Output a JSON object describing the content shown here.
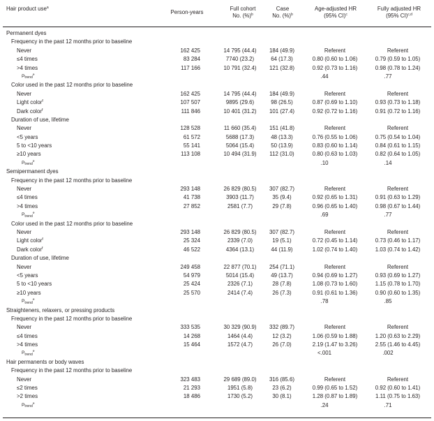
{
  "header": {
    "col_product": "Hair product use",
    "col_product_sup": "a",
    "col_py": "Person-years",
    "col_full_1": "Full cohort",
    "col_full_2": "No. (%)",
    "col_full_sup": "b",
    "col_case_1": "Case",
    "col_case_2": "No. (%)",
    "col_case_sup": "b",
    "col_age_1": "Age-adjusted HR",
    "col_age_2": "(95% CI)",
    "col_age_sup": "c",
    "col_fully_1": "Fully adjusted HR",
    "col_fully_2": "(95% CI)",
    "col_fully_sup": "c,d"
  },
  "ptrend": {
    "p": "P",
    "sub": "trend",
    "sup": "e"
  },
  "rows": [
    {
      "t": "section",
      "label": "Permanent dyes"
    },
    {
      "t": "subsection",
      "label": "Frequency in the past 12 months prior to baseline"
    },
    {
      "t": "item",
      "label": "Never",
      "py": "162 425",
      "full": "14 795 (44.4)",
      "case": "184 (49.9)",
      "age": "Referent",
      "fully": "Referent"
    },
    {
      "t": "item",
      "label": "≤4 times",
      "py": "83 284",
      "full": "7740 (23.2)",
      "case": "64 (17.3)",
      "age": "0.80 (0.60 to 1.06)",
      "fully": "0.79 (0.59 to 1.05)"
    },
    {
      "t": "item",
      "label": ">4 times",
      "py": "117 166",
      "full": "10 791 (32.4)",
      "case": "121 (32.8)",
      "age": "0.92 (0.73 to 1.16)",
      "fully": "0.98 (0.78 to 1.24)"
    },
    {
      "t": "ptrend",
      "age": ".44",
      "fully": ".77"
    },
    {
      "t": "subsection",
      "label": "Color used in the past 12 months prior to baseline"
    },
    {
      "t": "item",
      "label": "Never",
      "py": "162 425",
      "full": "14 795 (44.4)",
      "case": "184 (49.9)",
      "age": "Referent",
      "fully": "Referent"
    },
    {
      "t": "item",
      "label": "Light color",
      "sup": "f",
      "py": "107 507",
      "full": "9895 (29.6)",
      "case": "98 (26.5)",
      "age": "0.87 (0.69 to 1.10)",
      "fully": "0.93 (0.73 to 1.18)"
    },
    {
      "t": "item",
      "label": "Dark color",
      "sup": "f",
      "py": "111 846",
      "full": "10 401 (31.2)",
      "case": "101 (27.4)",
      "age": "0.92 (0.72 to 1.16)",
      "fully": "0.91 (0.72 to 1.16)"
    },
    {
      "t": "subsection",
      "label": "Duration of use, lifetime"
    },
    {
      "t": "item",
      "label": "Never",
      "py": "128 528",
      "full": "11 660 (35.4)",
      "case": "151 (41.8)",
      "age": "Referent",
      "fully": "Referent"
    },
    {
      "t": "item",
      "label": "<5 years",
      "py": "61 572",
      "full": "5688 (17.3)",
      "case": "48 (13.3)",
      "age": "0.76 (0.55 to 1.06)",
      "fully": "0.75 (0.54 to 1.04)"
    },
    {
      "t": "item",
      "label": "5 to <10 years",
      "py": "55 141",
      "full": "5064 (15.4)",
      "case": "50 (13.9)",
      "age": "0.83 (0.60 to 1.14)",
      "fully": "0.84 (0.61 to 1.15)"
    },
    {
      "t": "item",
      "label": "≥10 years",
      "py": "113 108",
      "full": "10 494 (31.9)",
      "case": "112 (31.0)",
      "age": "0.80 (0.63 to 1.03)",
      "fully": "0.82 (0.64 to 1.05)"
    },
    {
      "t": "ptrend",
      "age": ".10",
      "fully": ".14"
    },
    {
      "t": "section",
      "label": "Semipermanent dyes"
    },
    {
      "t": "subsection",
      "label": "Frequency in the past 12 months prior to baseline"
    },
    {
      "t": "item",
      "label": "Never",
      "py": "293 148",
      "full": "26 829 (80.5)",
      "case": "307 (82.7)",
      "age": "Referent",
      "fully": "Referent"
    },
    {
      "t": "item",
      "label": "≤4 times",
      "py": "41 738",
      "full": "3903 (11.7)",
      "case": "35 (9.4)",
      "age": "0.92 (0.65 to 1.31)",
      "fully": "0.91 (0.63 to 1.29)"
    },
    {
      "t": "item",
      "label": ">4 times",
      "py": "27 852",
      "full": "2581 (7.7)",
      "case": "29 (7.8)",
      "age": "0.96 (0.65 to 1.40)",
      "fully": "0.98 (0.67 to 1.44)"
    },
    {
      "t": "ptrend",
      "age": ".69",
      "fully": ".77"
    },
    {
      "t": "subsection",
      "label": "Color used in the past 12 months prior to baseline"
    },
    {
      "t": "item",
      "label": "Never",
      "py": "293 148",
      "full": "26 829 (80.5)",
      "case": "307 (82.7)",
      "age": "Referent",
      "fully": "Referent"
    },
    {
      "t": "item",
      "label": "Light color",
      "sup": "f",
      "py": "25 324",
      "full": "2339 (7.0)",
      "case": "19 (5.1)",
      "age": "0.72 (0.45 to 1.14)",
      "fully": "0.73 (0.46 to 1.17)"
    },
    {
      "t": "item",
      "label": "Dark color",
      "sup": "f",
      "py": "46 522",
      "full": "4364 (13.1)",
      "case": "44 (11.9)",
      "age": "1.02 (0.74 to 1.40)",
      "fully": "1.03 (0.74 to 1.42)"
    },
    {
      "t": "subsection",
      "label": "Duration of use, lifetime"
    },
    {
      "t": "item",
      "label": "Never",
      "py": "249 458",
      "full": "22 877 (70.1)",
      "case": "254 (71.1)",
      "age": "Referent",
      "fully": "Referent"
    },
    {
      "t": "item",
      "label": "<5 years",
      "py": "54 979",
      "full": "5014 (15.4)",
      "case": "49 (13.7)",
      "age": "0.94 (0.69 to 1.27)",
      "fully": "0.93 (0.69 to 1.27)"
    },
    {
      "t": "item",
      "label": "5 to <10 years",
      "py": "25 424",
      "full": "2326 (7.1)",
      "case": "28 (7.8)",
      "age": "1.08 (0.73 to 1.60)",
      "fully": "1.15 (0.78 to 1.70)"
    },
    {
      "t": "item",
      "label": "≥10 years",
      "py": "25 570",
      "full": "2414 (7.4)",
      "case": "26 (7.3)",
      "age": "0.91 (0.61 to 1.36)",
      "fully": "0.90 (0.60 to 1.35)"
    },
    {
      "t": "ptrend",
      "age": ".78",
      "fully": ".85"
    },
    {
      "t": "section",
      "label": "Straighteners, relaxers, or pressing products"
    },
    {
      "t": "subsection",
      "label": "Frequency in the past 12 months prior to baseline"
    },
    {
      "t": "item",
      "label": "Never",
      "py": "333 535",
      "full": "30 329 (90.9)",
      "case": "332 (89.7)",
      "age": "Referent",
      "fully": "Referent"
    },
    {
      "t": "item",
      "label": "≤4 times",
      "py": "14 268",
      "full": "1464 (4.4)",
      "case": "12 (3.2)",
      "age": "1.06 (0.59 to 1.88)",
      "fully": "1.20 (0.63 to 2.29)"
    },
    {
      "t": "item",
      "label": ">4 times",
      "py": "15 464",
      "full": "1572 (4.7)",
      "case": "26 (7.0)",
      "age": "2.19 (1.47 to 3.26)",
      "fully": "2.55 (1.46 to 4.45)"
    },
    {
      "t": "ptrend",
      "age": "<.001",
      "fully": ".002"
    },
    {
      "t": "section",
      "label": "Hair permanents or body waves"
    },
    {
      "t": "subsection",
      "label": "Frequency in the past 12 months prior to baseline"
    },
    {
      "t": "item",
      "label": "Never",
      "py": "323 483",
      "full": "29 689 (89.0)",
      "case": "316 (85.6)",
      "age": "Referent",
      "fully": "Referent"
    },
    {
      "t": "item",
      "label": "≤2 times",
      "py": "21 293",
      "full": "1951 (5.8)",
      "case": "23 (6.2)",
      "age": "0.99 (0.65 to 1.52)",
      "fully": "0.92 (0.60 to 1.41)"
    },
    {
      "t": "item",
      "label": ">2 times",
      "py": "18 486",
      "full": "1730 (5.2)",
      "case": "30 (8.1)",
      "age": "1.28 (0.87 to 1.89)",
      "fully": "1.11 (0.75 to 1.63)"
    },
    {
      "t": "ptrend",
      "age": ".24",
      "fully": ".71"
    }
  ]
}
